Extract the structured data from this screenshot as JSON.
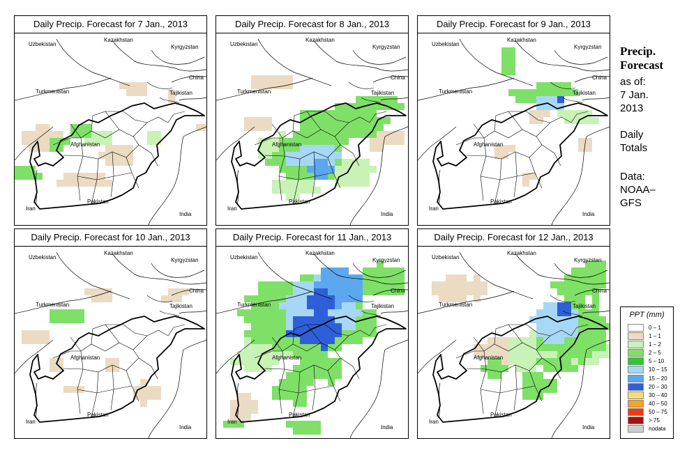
{
  "panels": [
    {
      "title": "Daily Precip. Forecast for  7 Jan., 2013",
      "pattern": "light"
    },
    {
      "title": "Daily Precip. Forecast for  8 Jan., 2013",
      "pattern": "moderate"
    },
    {
      "title": "Daily Precip. Forecast for  9 Jan., 2013",
      "pattern": "northeast"
    },
    {
      "title": "Daily Precip. Forecast for  10 Jan., 2013",
      "pattern": "sparse"
    },
    {
      "title": "Daily Precip. Forecast for  11 Jan., 2013",
      "pattern": "heavy"
    },
    {
      "title": "Daily Precip. Forecast for  12 Jan., 2013",
      "pattern": "east"
    }
  ],
  "map_labels": {
    "uzbekistan": "Uzbekistan",
    "kazakhstan": "Kazakhstan",
    "kyrgyzstan": "Kyrgyzstan",
    "turkmenistan": "Turkmenistan",
    "china": "China",
    "tajikistan": "Tajikistan",
    "afghanistan": "Afghanistan",
    "pakistan": "Pakistan",
    "iran": "Iran",
    "india": "India"
  },
  "sidebar": {
    "title_line1": "Precip.",
    "title_line2": "Forecast",
    "asof_line1": "as of:",
    "asof_line2": "7 Jan.",
    "asof_line3": "2013",
    "daily_line1": "Daily",
    "daily_line2": "Totals",
    "data_line1": "Data:",
    "data_line2": "NOAA–",
    "data_line3": "GFS"
  },
  "legend": {
    "title": "PPT (mm)",
    "items": [
      {
        "label": "0 – 1",
        "color": "#ffffff"
      },
      {
        "label": "1 – 1",
        "color": "#eadbc2"
      },
      {
        "label": "1 – 2",
        "color": "#c8f2b6"
      },
      {
        "label": "2 – 5",
        "color": "#7fe067"
      },
      {
        "label": "5 – 10",
        "color": "#30c830"
      },
      {
        "label": "10 – 15",
        "color": "#a6d8f5"
      },
      {
        "label": "15 – 20",
        "color": "#5ca7ee"
      },
      {
        "label": "20 – 30",
        "color": "#2f5fd8"
      },
      {
        "label": "30 – 40",
        "color": "#f5dd7a"
      },
      {
        "label": "40 – 50",
        "color": "#f4a42a"
      },
      {
        "label": "50 – 75",
        "color": "#ee3a15"
      },
      {
        "label": "> 75",
        "color": "#a81010"
      },
      {
        "label": "nodata",
        "color": "#cfcfcf"
      }
    ]
  }
}
